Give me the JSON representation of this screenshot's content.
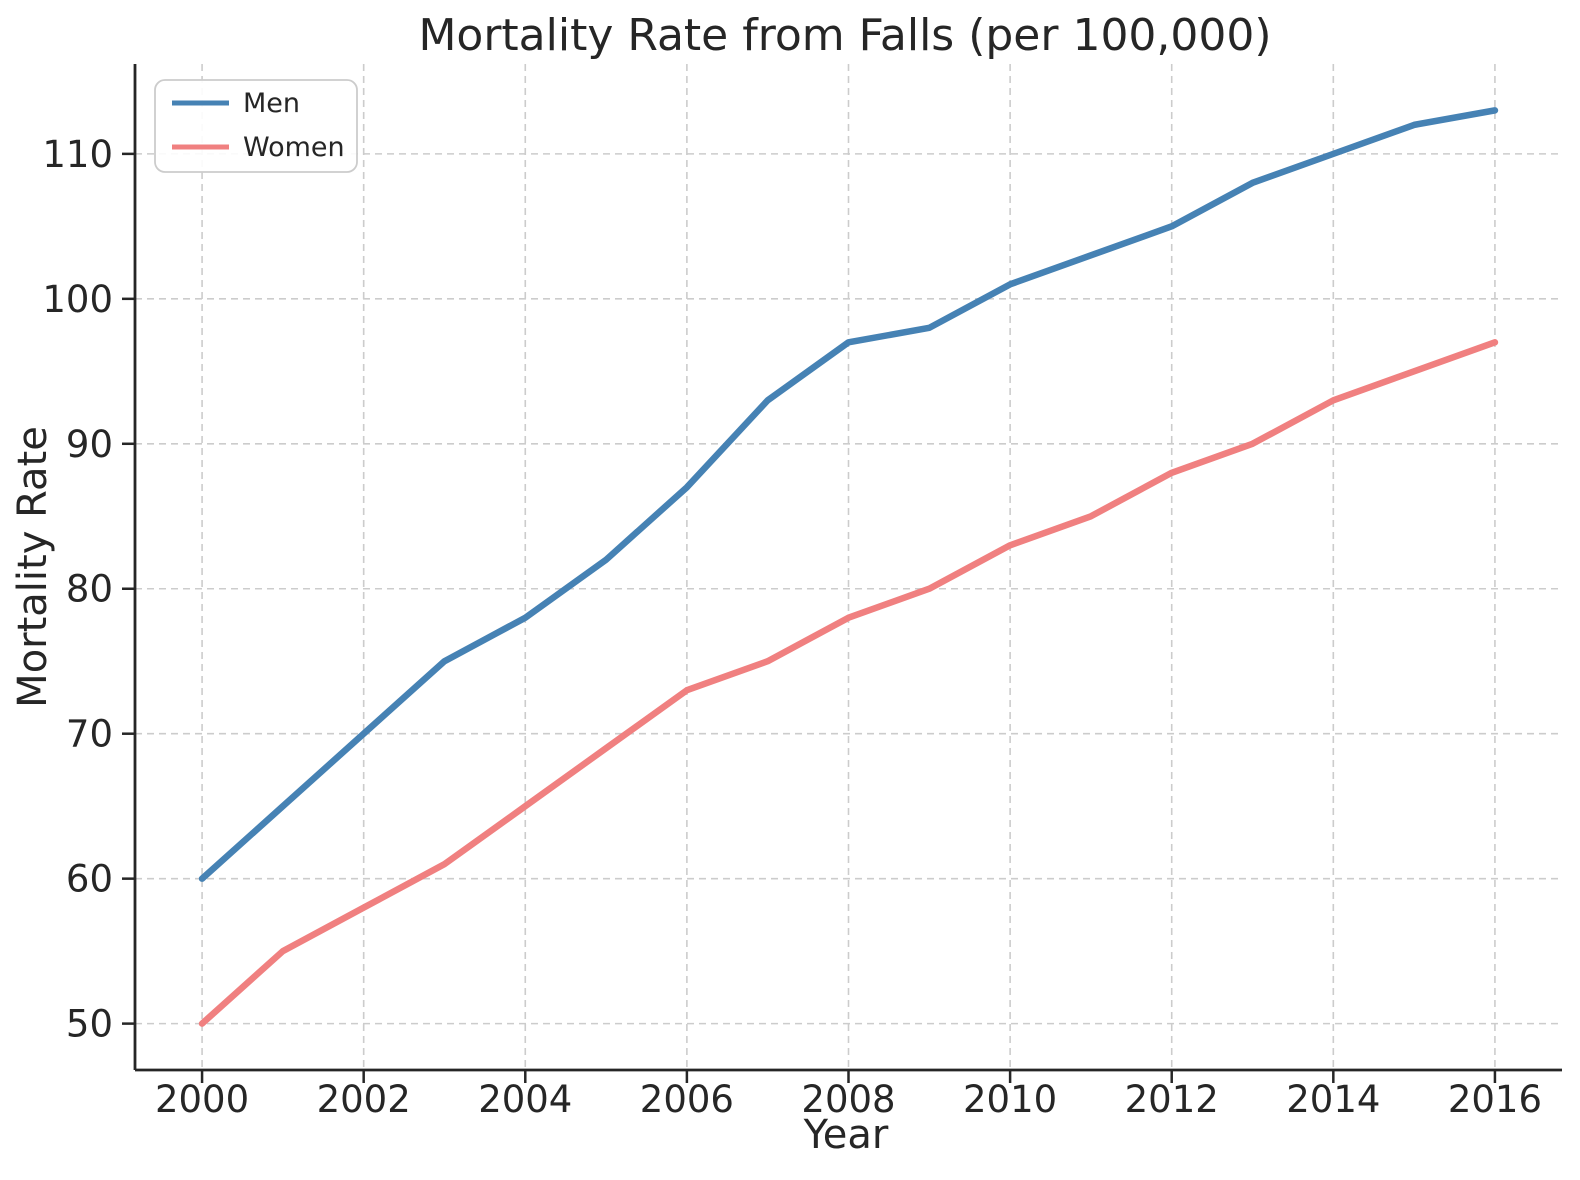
{
  "figure": {
    "title": "Mortality Rate from Falls (per 100,000)",
    "xlabel": "Year",
    "ylabel": "Mortality Rate"
  },
  "colors": {
    "background": "#ffffff",
    "grid": "#cccccc",
    "spine": "#262626",
    "text": "#262626",
    "legend_border": "#cccccc",
    "men": "#4682B4",
    "women": "#F08080"
  },
  "chart_data": {
    "type": "line",
    "title": "Mortality Rate from Falls (per 100,000)",
    "xlabel": "Year",
    "ylabel": "Mortality Rate",
    "x": [
      2000,
      2001,
      2002,
      2003,
      2004,
      2005,
      2006,
      2007,
      2008,
      2009,
      2010,
      2011,
      2012,
      2013,
      2014,
      2015,
      2016
    ],
    "series": [
      {
        "name": "Men",
        "color": "#4682B4",
        "values": [
          60,
          65,
          70,
          75,
          78,
          82,
          87,
          93,
          97,
          98,
          101,
          103,
          105,
          108,
          110,
          112,
          113
        ]
      },
      {
        "name": "Women",
        "color": "#F08080",
        "values": [
          50,
          55,
          58,
          61,
          65,
          69,
          73,
          75,
          78,
          80,
          83,
          85,
          88,
          90,
          93,
          95,
          97
        ]
      }
    ],
    "xticks": [
      2000,
      2002,
      2004,
      2006,
      2008,
      2010,
      2012,
      2014,
      2016
    ],
    "yticks": [
      50,
      60,
      70,
      80,
      90,
      100,
      110
    ],
    "xlim": [
      1999.17,
      2016.83
    ],
    "ylim": [
      46.8,
      116.2
    ],
    "grid": true,
    "grid_style": "dashed",
    "legend_position": "upper left"
  }
}
